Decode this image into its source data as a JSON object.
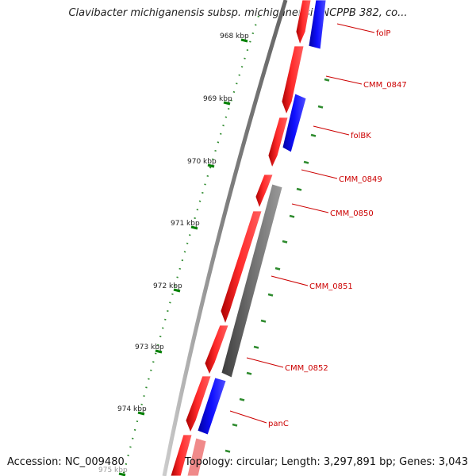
{
  "header": {
    "title": "Clavibacter michiganensis subsp. michiganensis NCPPB 382, co..."
  },
  "footer": {
    "accession": "Accession: NC_009480",
    "summary": "Topology: circular; Length: 3,297,891 bp; Genes: 3,043"
  },
  "colors": {
    "forward_strand": "#ff0000",
    "reverse_strand": "#0000ff",
    "other_feature": "#707070",
    "backbone": "#909090",
    "tick": "#008000",
    "label": "#cc0000"
  },
  "map": {
    "ticks": [
      {
        "label": "968 kbp"
      },
      {
        "label": "969 kbp"
      },
      {
        "label": "970 kbp"
      },
      {
        "label": "971 kbp"
      },
      {
        "label": "972 kbp"
      },
      {
        "label": "973 kbp"
      },
      {
        "label": "974 kbp"
      },
      {
        "label": "975 kbp"
      }
    ],
    "genes": [
      {
        "label": "folP",
        "strand": "reverse"
      },
      {
        "label": "CMM_0847",
        "strand": "forward"
      },
      {
        "label": "folBK",
        "strand": "reverse"
      },
      {
        "label": "CMM_0849",
        "strand": "forward"
      },
      {
        "label": "CMM_0850",
        "strand": "forward"
      },
      {
        "label": "CMM_0851",
        "strand": "forward"
      },
      {
        "label": "CMM_0852",
        "strand": "other"
      },
      {
        "label": "panC",
        "strand": "reverse"
      }
    ]
  }
}
